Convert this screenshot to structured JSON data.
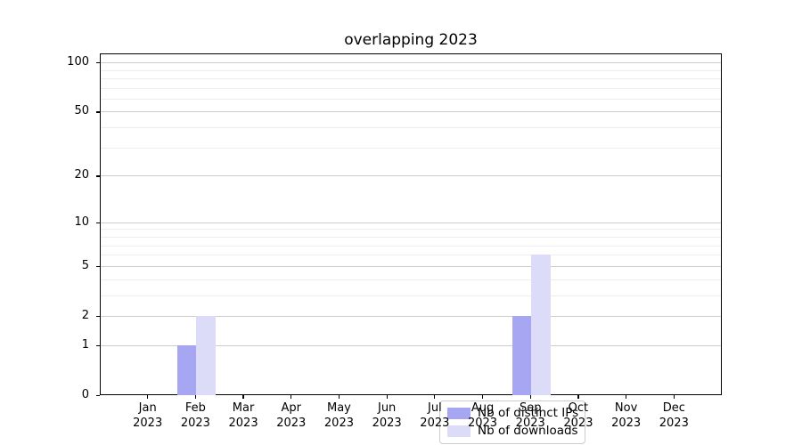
{
  "chart_data": {
    "type": "bar",
    "title": "overlapping 2023",
    "categories": [
      "Jan",
      "Feb",
      "Mar",
      "Apr",
      "May",
      "Jun",
      "Jul",
      "Aug",
      "Sep",
      "Oct",
      "Nov",
      "Dec"
    ],
    "category_year": "2023",
    "series": [
      {
        "name": "Nb of distinct IPs",
        "color": "#a6a6f2",
        "values": [
          0,
          1,
          0,
          0,
          0,
          0,
          0,
          0,
          2,
          0,
          0,
          0
        ]
      },
      {
        "name": "Nb of downloads",
        "color": "#dcdcf8",
        "values": [
          0,
          2,
          0,
          0,
          0,
          0,
          0,
          0,
          6,
          0,
          0,
          0
        ]
      }
    ],
    "xlabel": "",
    "ylabel": "",
    "y_axis": {
      "scale": "log1p",
      "major_ticks": [
        0,
        1,
        2,
        5,
        10,
        20,
        50,
        100
      ],
      "minor_gridlines": [
        3,
        4,
        6,
        7,
        8,
        9,
        30,
        40,
        60,
        70,
        80,
        90
      ],
      "min": 0,
      "max": 112
    },
    "grid": "on",
    "legend_position": "lower center",
    "colors": {
      "major_grid": "#cdcdcd",
      "minor_grid": "#ededed",
      "axis": "#000000",
      "background": "#ffffff"
    }
  }
}
